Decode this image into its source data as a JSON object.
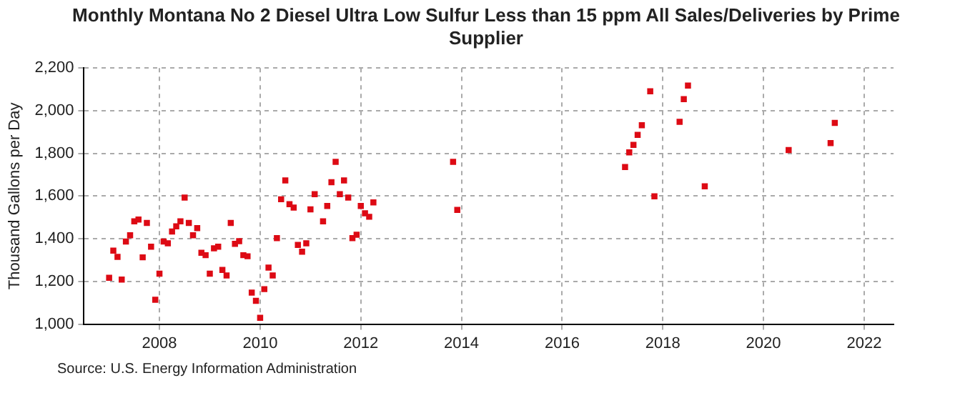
{
  "chart_data": {
    "type": "scatter",
    "title": "Monthly Montana No 2 Diesel Ultra Low Sulfur Less than 15 ppm All Sales/Deliveries by Prime Supplier",
    "ylabel": "Thousand Gallons per Day",
    "annotations": [
      "Source: U.S. Energy Information Administration"
    ],
    "x": [
      "2007-01",
      "2007-02",
      "2007-03",
      "2007-04",
      "2007-05",
      "2007-06",
      "2007-07",
      "2007-08",
      "2007-09",
      "2007-10",
      "2007-11",
      "2007-12",
      "2008-01",
      "2008-02",
      "2008-03",
      "2008-04",
      "2008-05",
      "2008-06",
      "2008-07",
      "2008-08",
      "2008-09",
      "2008-10",
      "2008-11",
      "2008-12",
      "2009-01",
      "2009-02",
      "2009-03",
      "2009-04",
      "2009-05",
      "2009-06",
      "2009-07",
      "2009-08",
      "2009-09",
      "2009-10",
      "2009-11",
      "2009-12",
      "2010-01",
      "2010-02",
      "2010-03",
      "2010-04",
      "2010-05",
      "2010-06",
      "2010-07",
      "2010-08",
      "2010-09",
      "2010-10",
      "2010-11",
      "2010-12",
      "2011-01",
      "2011-02",
      "2011-04",
      "2011-05",
      "2011-06",
      "2011-07",
      "2011-08",
      "2011-09",
      "2011-10",
      "2011-11",
      "2011-12",
      "2012-01",
      "2012-02",
      "2012-03",
      "2012-04",
      "2013-11",
      "2013-12",
      "2017-04",
      "2017-05",
      "2017-06",
      "2017-07",
      "2017-08",
      "2017-10",
      "2017-11",
      "2018-05",
      "2018-06",
      "2018-07",
      "2018-11",
      "2020-07",
      "2021-05",
      "2021-06"
    ],
    "values": [
      1217,
      1344,
      1315,
      1209,
      1387,
      1416,
      1482,
      1490,
      1313,
      1474,
      1363,
      1114,
      1236,
      1387,
      1379,
      1434,
      1458,
      1482,
      1593,
      1474,
      1416,
      1450,
      1334,
      1323,
      1236,
      1355,
      1363,
      1254,
      1228,
      1474,
      1376,
      1389,
      1323,
      1318,
      1148,
      1109,
      1030,
      1164,
      1265,
      1228,
      1403,
      1585,
      1673,
      1562,
      1546,
      1371,
      1339,
      1379,
      1538,
      1609,
      1482,
      1554,
      1665,
      1760,
      1609,
      1673,
      1593,
      1403,
      1419,
      1554,
      1519,
      1503,
      1570,
      1760,
      1535,
      1736,
      1805,
      1840,
      1887,
      1932,
      2091,
      1599,
      1948,
      2054,
      2118,
      1646,
      1816,
      1848,
      1943
    ],
    "color": "#dd0a14",
    "marker": "square",
    "xlim": [
      "2006-07",
      "2022-08"
    ],
    "xticks": [
      "2008",
      "2010",
      "2012",
      "2014",
      "2016",
      "2018",
      "2020",
      "2022"
    ],
    "ylim": [
      1000,
      2200
    ],
    "yticks": [
      {
        "value": 1000,
        "label": "1,000"
      },
      {
        "value": 1200,
        "label": "1,200"
      },
      {
        "value": 1400,
        "label": "1,400"
      },
      {
        "value": 1600,
        "label": "1,600"
      },
      {
        "value": 1800,
        "label": "1,800"
      },
      {
        "value": 2000,
        "label": "2,000"
      },
      {
        "value": 2200,
        "label": "2,200"
      }
    ],
    "grid": true,
    "line_style": "dashed",
    "legend": false
  }
}
